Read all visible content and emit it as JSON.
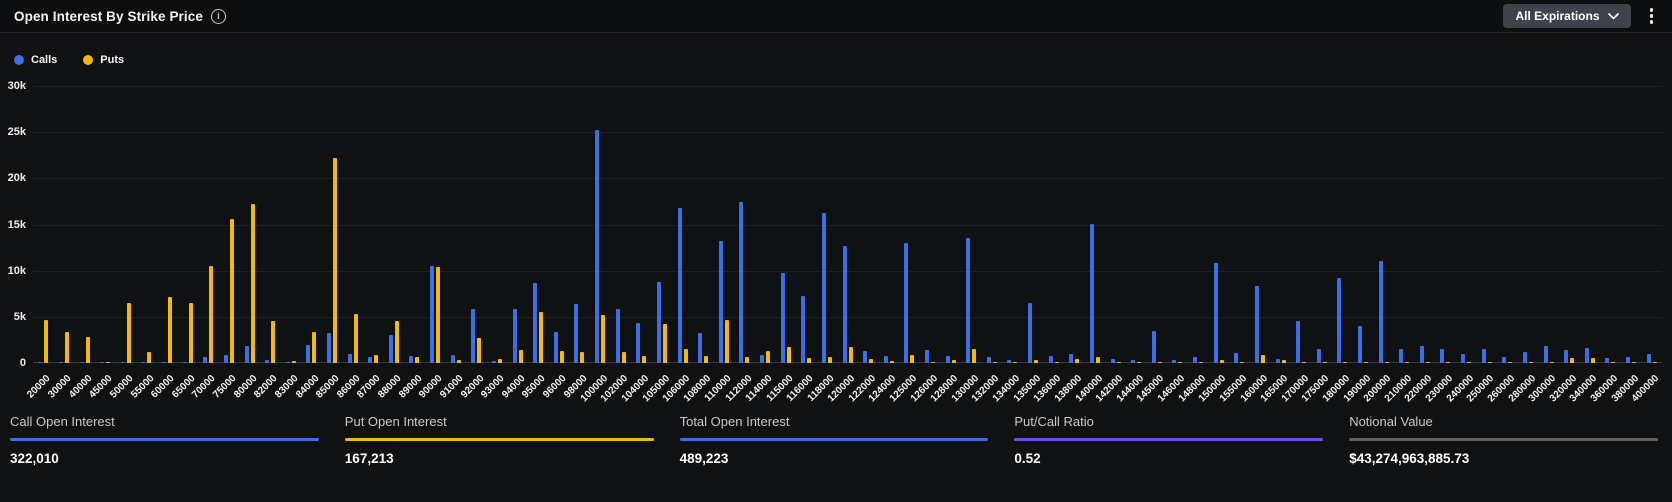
{
  "header": {
    "title": "Open Interest By Strike Price",
    "info_icon": "info-circle-icon",
    "expirations_button": "All Expirations",
    "chevron_icon": "chevron-down-icon",
    "menu_icon": "kebab-menu-icon"
  },
  "legend": [
    {
      "label": "Calls",
      "color": "#3D6FE3"
    },
    {
      "label": "Puts",
      "color": "#F0B90B"
    }
  ],
  "chart_data": {
    "type": "bar",
    "title": "Open Interest By Strike Price",
    "legend_position": "top-left",
    "grid": "horizontal",
    "xlabel": "",
    "ylabel": "",
    "ylim": [
      0,
      30000
    ],
    "ytick_step": 5000,
    "ytick_labels": [
      "0",
      "5k",
      "10k",
      "15k",
      "20k",
      "25k",
      "30k"
    ],
    "categories": [
      "20000",
      "30000",
      "40000",
      "45000",
      "50000",
      "55000",
      "60000",
      "65000",
      "70000",
      "75000",
      "80000",
      "82000",
      "83000",
      "84000",
      "85000",
      "86000",
      "87000",
      "88000",
      "89000",
      "90000",
      "91000",
      "92000",
      "93000",
      "94000",
      "95000",
      "96000",
      "98000",
      "100000",
      "102000",
      "104000",
      "105000",
      "106000",
      "108000",
      "110000",
      "112000",
      "114000",
      "115000",
      "116000",
      "118000",
      "120000",
      "122000",
      "124000",
      "125000",
      "126000",
      "128000",
      "130000",
      "132000",
      "134000",
      "135000",
      "136000",
      "138000",
      "140000",
      "142000",
      "144000",
      "145000",
      "146000",
      "148000",
      "150000",
      "155000",
      "160000",
      "165000",
      "170000",
      "175000",
      "180000",
      "190000",
      "200000",
      "210000",
      "220000",
      "230000",
      "240000",
      "250000",
      "260000",
      "280000",
      "300000",
      "320000",
      "340000",
      "360000",
      "380000",
      "400000"
    ],
    "series": [
      {
        "name": "Calls",
        "color": "#3D6FE3",
        "values": [
          60,
          50,
          50,
          30,
          80,
          60,
          100,
          150,
          700,
          900,
          1800,
          300,
          100,
          1900,
          3200,
          1000,
          600,
          3000,
          800,
          10500,
          900,
          5900,
          200,
          5800,
          8700,
          3400,
          6400,
          25200,
          5900,
          4300,
          8800,
          16800,
          3200,
          13200,
          17400,
          900,
          9700,
          7300,
          16200,
          12700,
          1300,
          800,
          13000,
          1400,
          800,
          13500,
          700,
          300,
          6500,
          800,
          1000,
          15100,
          400,
          300,
          3500,
          300,
          700,
          10800,
          1100,
          8300,
          400,
          4500,
          1500,
          9200,
          4000,
          11000,
          1500,
          1800,
          1500,
          1000,
          1500,
          700,
          1200,
          1800,
          1400,
          1600,
          500,
          700,
          1000
        ]
      },
      {
        "name": "Puts",
        "color": "#F0B90B",
        "values": [
          4700,
          3400,
          2800,
          150,
          6500,
          1200,
          7100,
          6500,
          10500,
          15600,
          17200,
          4500,
          200,
          3400,
          22200,
          5300,
          900,
          4600,
          600,
          10400,
          300,
          2700,
          400,
          1400,
          5500,
          1300,
          1200,
          5200,
          1200,
          800,
          4200,
          1500,
          800,
          4700,
          700,
          1300,
          1700,
          500,
          600,
          1700,
          400,
          200,
          900,
          100,
          300,
          1500,
          100,
          100,
          300,
          100,
          400,
          600,
          100,
          100,
          100,
          100,
          100,
          300,
          100,
          900,
          300,
          100,
          100,
          100,
          100,
          100,
          100,
          100,
          100,
          100,
          100,
          100,
          100,
          100,
          500,
          500,
          100,
          100,
          100
        ]
      }
    ]
  },
  "stats": [
    {
      "label": "Call Open Interest",
      "value": "322,010",
      "underline_color": "#3D6FE3"
    },
    {
      "label": "Put Open Interest",
      "value": "167,213",
      "underline_color": "#F0B90B"
    },
    {
      "label": "Total Open Interest",
      "value": "489,223",
      "underline_color": "#3D6FE3"
    },
    {
      "label": "Put/Call Ratio",
      "value": "0.52",
      "underline_color": "#6A4DF4"
    },
    {
      "label": "Notional Value",
      "value": "$43,274,963,885.73",
      "underline_color": "#616161"
    }
  ]
}
